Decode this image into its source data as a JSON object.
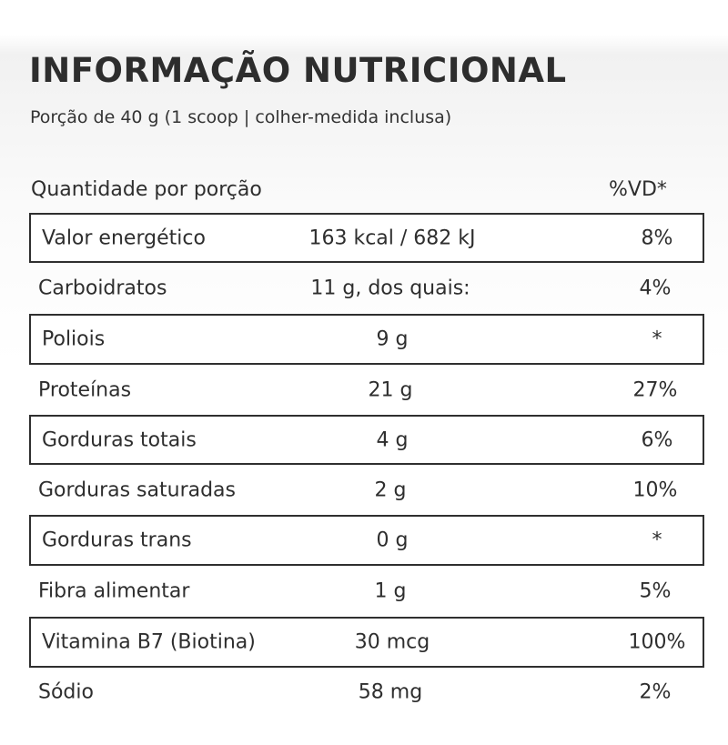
{
  "header": {
    "title": "INFORMAÇÃO NUTRICIONAL",
    "serving": "Porção de 40 g (1 scoop | colher-medida inclusa)"
  },
  "columns": {
    "quantity_label": "Quantidade por porção",
    "dv_label": "%VD*"
  },
  "rows": [
    {
      "name": "Valor energético",
      "amount": "163 kcal / 682 kJ",
      "dv": "8%",
      "boxed": true
    },
    {
      "name": "Carboidratos",
      "amount": "11 g, dos quais:",
      "dv": "4%",
      "boxed": false
    },
    {
      "name": "Poliois",
      "amount": "9 g",
      "dv": "*",
      "boxed": true
    },
    {
      "name": "Proteínas",
      "amount": "21 g",
      "dv": "27%",
      "boxed": false
    },
    {
      "name": "Gorduras totais",
      "amount": "4 g",
      "dv": "6%",
      "boxed": true
    },
    {
      "name": "Gorduras saturadas",
      "amount": "2 g",
      "dv": "10%",
      "boxed": false
    },
    {
      "name": "Gorduras trans",
      "amount": "0 g",
      "dv": "*",
      "boxed": true
    },
    {
      "name": "Fibra alimentar",
      "amount": "1 g",
      "dv": "5%",
      "boxed": false
    },
    {
      "name": "Vitamina B7 (Biotina)",
      "amount": "30 mcg",
      "dv": "100%",
      "boxed": true
    },
    {
      "name": "Sódio",
      "amount": "58 mg",
      "dv": "2%",
      "boxed": false
    }
  ]
}
